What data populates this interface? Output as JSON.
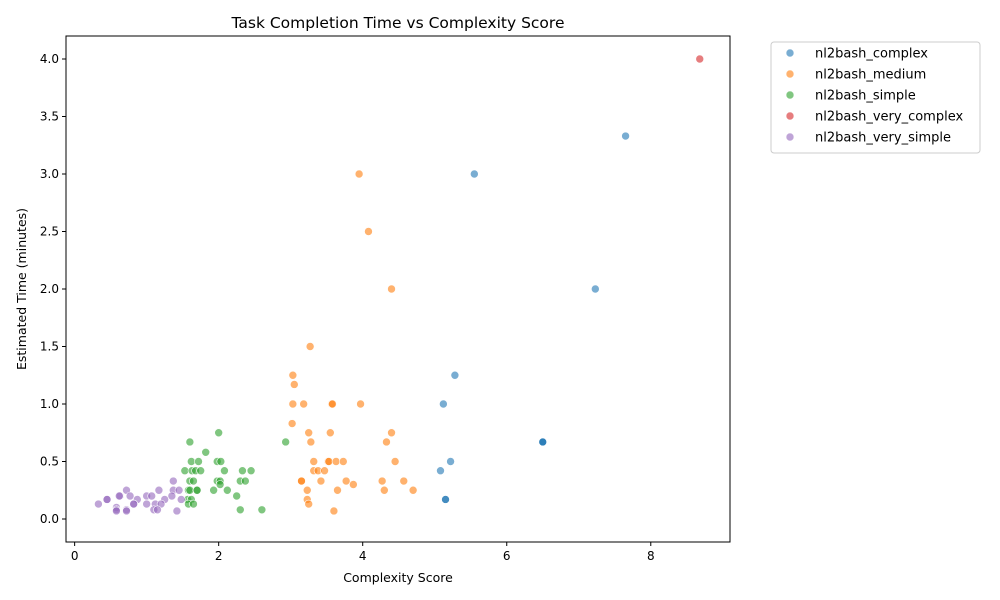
{
  "chart_data": {
    "type": "scatter",
    "title": "Task Completion Time vs Complexity Score",
    "xlabel": "Complexity Score",
    "ylabel": "Estimated Time (minutes)",
    "xlim": [
      -0.12,
      9.1
    ],
    "ylim": [
      -0.2,
      4.2
    ],
    "xticks": [
      0,
      2,
      4,
      6,
      8
    ],
    "yticks": [
      0.0,
      0.5,
      1.0,
      1.5,
      2.0,
      2.5,
      3.0,
      3.5,
      4.0
    ],
    "grid": false,
    "legend_position": "outside-right-top",
    "series": [
      {
        "name": "nl2bash_complex",
        "color": "#1f77b4",
        "points": [
          [
            7.65,
            3.33
          ],
          [
            5.55,
            3.0
          ],
          [
            7.23,
            2.0
          ],
          [
            5.28,
            1.25
          ],
          [
            5.12,
            1.0
          ],
          [
            6.5,
            0.67
          ],
          [
            6.5,
            0.67
          ],
          [
            6.5,
            0.67
          ],
          [
            5.22,
            0.5
          ],
          [
            5.08,
            0.42
          ],
          [
            5.15,
            0.17
          ],
          [
            5.15,
            0.17
          ]
        ]
      },
      {
        "name": "nl2bash_medium",
        "color": "#ff7f0e",
        "points": [
          [
            3.95,
            3.0
          ],
          [
            4.08,
            2.5
          ],
          [
            4.4,
            2.0
          ],
          [
            3.27,
            1.5
          ],
          [
            3.03,
            1.25
          ],
          [
            3.05,
            1.17
          ],
          [
            3.03,
            1.0
          ],
          [
            3.18,
            1.0
          ],
          [
            3.57,
            1.0
          ],
          [
            3.58,
            1.0
          ],
          [
            3.97,
            1.0
          ],
          [
            3.02,
            0.83
          ],
          [
            3.25,
            0.75
          ],
          [
            3.55,
            0.75
          ],
          [
            4.4,
            0.75
          ],
          [
            3.28,
            0.67
          ],
          [
            4.33,
            0.67
          ],
          [
            3.32,
            0.5
          ],
          [
            3.52,
            0.5
          ],
          [
            3.53,
            0.5
          ],
          [
            3.63,
            0.5
          ],
          [
            3.73,
            0.5
          ],
          [
            4.45,
            0.5
          ],
          [
            3.32,
            0.42
          ],
          [
            3.38,
            0.42
          ],
          [
            3.47,
            0.42
          ],
          [
            3.15,
            0.33
          ],
          [
            3.15,
            0.33
          ],
          [
            3.42,
            0.33
          ],
          [
            3.77,
            0.33
          ],
          [
            4.27,
            0.33
          ],
          [
            4.57,
            0.33
          ],
          [
            3.87,
            0.3
          ],
          [
            3.23,
            0.25
          ],
          [
            3.65,
            0.25
          ],
          [
            4.3,
            0.25
          ],
          [
            4.7,
            0.25
          ],
          [
            3.23,
            0.17
          ],
          [
            3.25,
            0.13
          ],
          [
            3.6,
            0.07
          ]
        ]
      },
      {
        "name": "nl2bash_simple",
        "color": "#2ca02c",
        "points": [
          [
            2.0,
            0.75
          ],
          [
            1.6,
            0.67
          ],
          [
            2.93,
            0.67
          ],
          [
            1.82,
            0.58
          ],
          [
            1.62,
            0.5
          ],
          [
            1.72,
            0.5
          ],
          [
            1.98,
            0.5
          ],
          [
            2.03,
            0.5
          ],
          [
            1.53,
            0.42
          ],
          [
            1.63,
            0.42
          ],
          [
            1.68,
            0.42
          ],
          [
            1.75,
            0.42
          ],
          [
            2.08,
            0.42
          ],
          [
            2.33,
            0.42
          ],
          [
            2.45,
            0.42
          ],
          [
            1.6,
            0.33
          ],
          [
            1.65,
            0.33
          ],
          [
            1.98,
            0.33
          ],
          [
            2.02,
            0.33
          ],
          [
            2.3,
            0.33
          ],
          [
            2.37,
            0.33
          ],
          [
            2.02,
            0.3
          ],
          [
            1.58,
            0.25
          ],
          [
            1.6,
            0.25
          ],
          [
            1.7,
            0.25
          ],
          [
            1.7,
            0.25
          ],
          [
            1.93,
            0.25
          ],
          [
            2.12,
            0.25
          ],
          [
            2.25,
            0.2
          ],
          [
            1.57,
            0.17
          ],
          [
            1.62,
            0.17
          ],
          [
            1.58,
            0.13
          ],
          [
            1.65,
            0.13
          ],
          [
            2.3,
            0.08
          ],
          [
            2.6,
            0.08
          ]
        ]
      },
      {
        "name": "nl2bash_very_complex",
        "color": "#d62728",
        "points": [
          [
            8.68,
            4.0
          ]
        ]
      },
      {
        "name": "nl2bash_very_simple",
        "color": "#9467bd",
        "points": [
          [
            0.72,
            0.25
          ],
          [
            1.17,
            0.25
          ],
          [
            1.37,
            0.25
          ],
          [
            1.45,
            0.25
          ],
          [
            0.63,
            0.2
          ],
          [
            0.77,
            0.2
          ],
          [
            1.0,
            0.2
          ],
          [
            1.07,
            0.2
          ],
          [
            1.35,
            0.2
          ],
          [
            0.45,
            0.17
          ],
          [
            0.45,
            0.17
          ],
          [
            0.87,
            0.17
          ],
          [
            1.25,
            0.17
          ],
          [
            1.48,
            0.17
          ],
          [
            0.33,
            0.13
          ],
          [
            0.82,
            0.13
          ],
          [
            0.82,
            0.13
          ],
          [
            1.0,
            0.13
          ],
          [
            1.12,
            0.13
          ],
          [
            1.2,
            0.13
          ],
          [
            0.58,
            0.1
          ],
          [
            0.58,
            0.08
          ],
          [
            0.72,
            0.08
          ],
          [
            1.1,
            0.08
          ],
          [
            1.15,
            0.08
          ],
          [
            0.58,
            0.07
          ],
          [
            0.72,
            0.07
          ],
          [
            1.42,
            0.07
          ],
          [
            0.62,
            0.2
          ],
          [
            1.37,
            0.33
          ]
        ]
      }
    ]
  }
}
